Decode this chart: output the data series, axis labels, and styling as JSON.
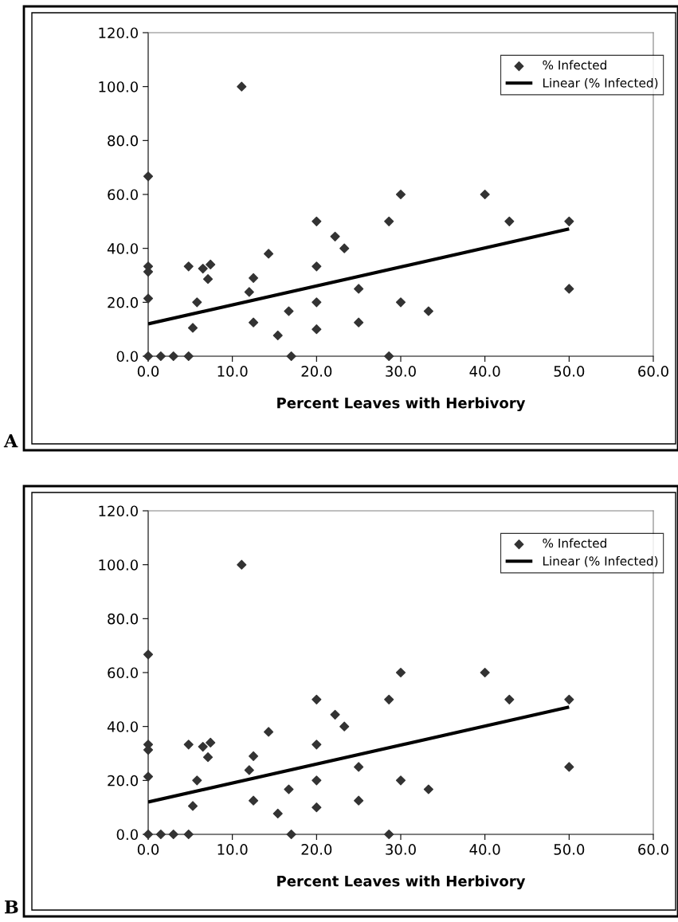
{
  "chart_data": [
    {
      "type": "scatter",
      "xlabel": "Percent Leaves with Herbivory",
      "annotations": [
        "A"
      ],
      "xlim": [
        0,
        60
      ],
      "xticks": [
        {
          "value": 0,
          "label": "0.0"
        },
        {
          "value": 10,
          "label": "10.0"
        },
        {
          "value": 20,
          "label": "20.0"
        },
        {
          "value": 30,
          "label": "30.0"
        },
        {
          "value": 40,
          "label": "40.0"
        },
        {
          "value": 50,
          "label": "50.0"
        },
        {
          "value": 60,
          "label": "60.0"
        }
      ],
      "ylim": [
        0,
        120
      ],
      "yticks": [
        {
          "value": 0,
          "label": "0.0"
        },
        {
          "value": 20,
          "label": "20.0"
        },
        {
          "value": 40,
          "label": "40.0"
        },
        {
          "value": 60,
          "label": "60.0"
        },
        {
          "value": 80,
          "label": "80.0"
        },
        {
          "value": 100,
          "label": "100.0"
        },
        {
          "value": 120,
          "label": "120.0"
        }
      ],
      "grid": false,
      "legend": "top right",
      "series": [
        {
          "name": "% Infected",
          "marker": "diamond",
          "color": "#333333",
          "x": [
            0,
            0,
            0,
            0,
            0,
            1.5,
            3,
            4.8,
            4.8,
            5.3,
            5.8,
            6.5,
            7.1,
            7.4,
            11.1,
            12,
            12.5,
            12.5,
            14.3,
            15.4,
            16.7,
            17,
            20,
            20,
            20,
            20,
            22.2,
            23.3,
            25,
            25,
            28.6,
            28.6,
            30,
            30,
            33.3,
            40,
            42.9,
            50,
            50
          ],
          "values": [
            0,
            66.7,
            33.3,
            31.3,
            21.4,
            0,
            0,
            0,
            33.3,
            10.5,
            20,
            32.5,
            28.6,
            34,
            100,
            23.8,
            29,
            12.5,
            38,
            7.7,
            16.7,
            0,
            50,
            33.3,
            20,
            10,
            44.4,
            40,
            25,
            12.5,
            50,
            0,
            60,
            20,
            16.7,
            60,
            50,
            50,
            25
          ]
        },
        {
          "name": "Linear (% Infected)",
          "type": "line",
          "color": "#000000",
          "x": [
            0,
            50
          ],
          "values": [
            12,
            47.2
          ]
        }
      ]
    },
    {
      "type": "scatter",
      "xlabel": "Percent Leaves with Herbivory",
      "annotations": [
        "B"
      ],
      "xlim": [
        0,
        60
      ],
      "xticks": [
        {
          "value": 0,
          "label": "0.0"
        },
        {
          "value": 10,
          "label": "10.0"
        },
        {
          "value": 20,
          "label": "20.0"
        },
        {
          "value": 30,
          "label": "30.0"
        },
        {
          "value": 40,
          "label": "40.0"
        },
        {
          "value": 50,
          "label": "50.0"
        },
        {
          "value": 60,
          "label": "60.0"
        }
      ],
      "ylim": [
        0,
        120
      ],
      "yticks": [
        {
          "value": 0,
          "label": "0.0"
        },
        {
          "value": 20,
          "label": "20.0"
        },
        {
          "value": 40,
          "label": "40.0"
        },
        {
          "value": 60,
          "label": "60.0"
        },
        {
          "value": 80,
          "label": "80.0"
        },
        {
          "value": 100,
          "label": "100.0"
        },
        {
          "value": 120,
          "label": "120.0"
        }
      ],
      "grid": false,
      "legend": "top right",
      "series": [
        {
          "name": "% Infected",
          "marker": "diamond",
          "color": "#333333",
          "x": [
            0,
            0,
            0,
            0,
            0,
            1.5,
            3,
            4.8,
            4.8,
            5.3,
            5.8,
            6.5,
            7.1,
            7.4,
            11.1,
            12,
            12.5,
            12.5,
            14.3,
            15.4,
            16.7,
            17,
            20,
            20,
            20,
            20,
            22.2,
            23.3,
            25,
            25,
            28.6,
            28.6,
            30,
            30,
            33.3,
            40,
            42.9,
            50,
            50
          ],
          "values": [
            0,
            66.7,
            33.3,
            31.3,
            21.4,
            0,
            0,
            0,
            33.3,
            10.5,
            20,
            32.5,
            28.6,
            34,
            100,
            23.8,
            29,
            12.5,
            38,
            7.7,
            16.7,
            0,
            50,
            33.3,
            20,
            10,
            44.4,
            40,
            25,
            12.5,
            50,
            0,
            60,
            20,
            16.7,
            60,
            50,
            50,
            25
          ]
        },
        {
          "name": "Linear (% Infected)",
          "type": "line",
          "color": "#000000",
          "x": [
            0,
            50
          ],
          "values": [
            12,
            47.2
          ]
        }
      ]
    }
  ]
}
